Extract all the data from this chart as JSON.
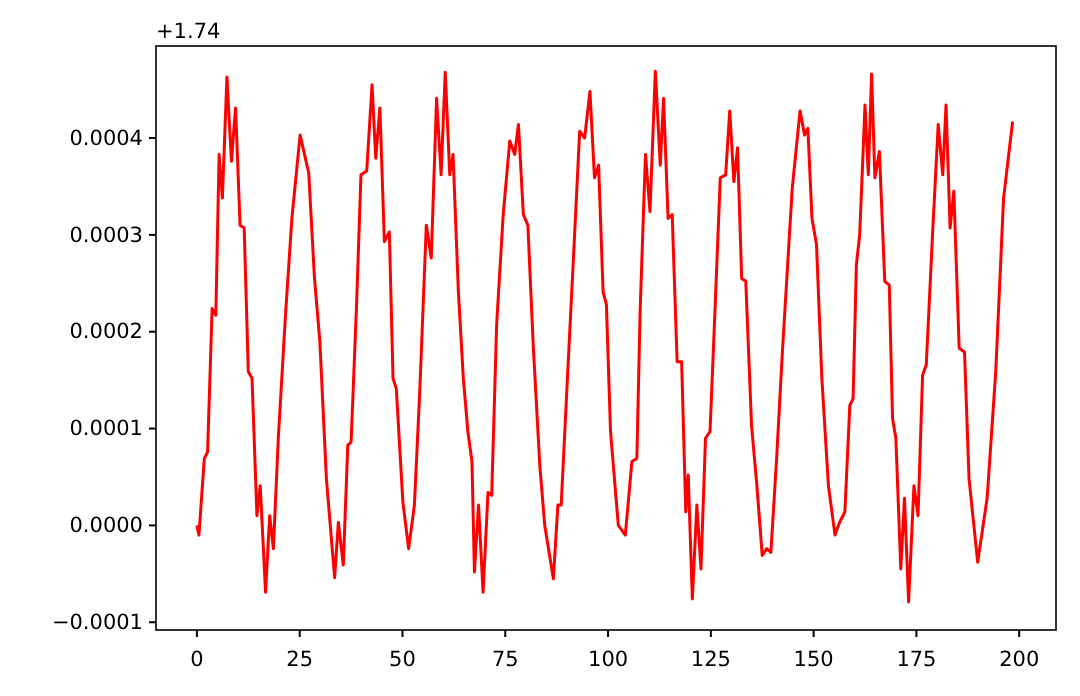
{
  "chart_data": {
    "type": "line",
    "annotations": [
      "+1.74"
    ],
    "xlim": [
      -9.95,
      208.95
    ],
    "xticks": [
      0,
      25,
      50,
      75,
      100,
      125,
      150,
      175,
      200
    ],
    "ylim": [
      -0.000108,
      0.000495
    ],
    "yticks": [
      {
        "value": -0.0001,
        "label": "−0.0001"
      },
      {
        "value": 0,
        "label": "0.0000"
      },
      {
        "value": 0.0001,
        "label": "0.0001"
      },
      {
        "value": 0.0002,
        "label": "0.0002"
      },
      {
        "value": 0.0003,
        "label": "0.0003"
      },
      {
        "value": 0.0004,
        "label": "0.0004"
      }
    ],
    "grid": false,
    "marker": "none",
    "line_style": "solid",
    "series": [
      {
        "color": "#ff0000",
        "x": [
          0,
          0.5,
          1.8,
          2.6,
          3.7,
          4.6,
          5.4,
          6.2,
          7.3,
          8.4,
          9.4,
          10.5,
          11.5,
          12.5,
          13.4,
          14.6,
          15.4,
          16.7,
          17.7,
          18.6,
          19.8,
          21.5,
          23.1,
          25.1,
          27.2,
          28.6,
          29.9,
          31.5,
          33.5,
          34.4,
          35.6,
          36.7,
          37.5,
          38.8,
          39.9,
          41.3,
          42.6,
          43.5,
          44.5,
          45.6,
          46.8,
          47.7,
          48.5,
          50.1,
          51.5,
          52.9,
          54.2,
          55.8,
          57,
          58.3,
          59.4,
          60.4,
          61.5,
          62.3,
          63.6,
          64.8,
          65.9,
          66.9,
          67.5,
          68.5,
          69.6,
          70.8,
          71.7,
          72.9,
          74.5,
          76.1,
          77.3,
          78.2,
          79.4,
          80.5,
          81.8,
          83.4,
          84.6,
          86.7,
          87.8,
          88.6,
          90.2,
          91.5,
          93.1,
          94.3,
          95.6,
          96.7,
          97.7,
          98.8,
          99.6,
          100.6,
          102.5,
          104.2,
          105.8,
          107,
          107.8,
          109.1,
          110.2,
          111.5,
          112.7,
          113.5,
          114.6,
          115.6,
          116.8,
          117.9,
          118.9,
          119.5,
          120.5,
          121.6,
          122.6,
          123.7,
          124.8,
          126,
          127.3,
          128.6,
          129.6,
          130.6,
          131.5,
          132.5,
          133.5,
          134.9,
          136.2,
          137.5,
          138.6,
          139.6,
          141,
          142.4,
          144.8,
          146.7,
          147.8,
          148.6,
          149.6,
          150.7,
          152,
          153.6,
          155.2,
          156.3,
          157.6,
          158.8,
          159.6,
          160.4,
          161.2,
          162.5,
          163.3,
          164.1,
          164.9,
          166,
          167.3,
          168.4,
          169.2,
          170,
          171.2,
          172.1,
          173.1,
          174.4,
          175.4,
          176.5,
          177.4,
          179,
          180.3,
          181.4,
          182.2,
          183.2,
          184.1,
          185.4,
          186.7,
          187.8,
          189.9,
          192.2,
          194.3,
          196.2,
          198.4
        ],
        "values": [
          0,
          -1e-05,
          6.9e-05,
          7.6e-05,
          0.000224,
          0.000217,
          0.000383,
          0.000338,
          0.000463,
          0.000376,
          0.000431,
          0.00031,
          0.000307,
          0.000159,
          0.000152,
          1e-05,
          4.1e-05,
          -6.9e-05,
          1e-05,
          -2.4e-05,
          9e-05,
          0.000214,
          0.000317,
          0.000403,
          0.000364,
          0.000255,
          0.00019,
          4.8e-05,
          -5.4e-05,
          3e-06,
          -4.1e-05,
          8.3e-05,
          8.6e-05,
          0.000224,
          0.000362,
          0.000366,
          0.000455,
          0.000379,
          0.000431,
          0.000293,
          0.000303,
          0.000152,
          0.000141,
          2.4e-05,
          -2.4e-05,
          2.1e-05,
          0.000138,
          0.00031,
          0.000276,
          0.000441,
          0.000362,
          0.000468,
          0.000362,
          0.000383,
          0.000241,
          0.000152,
          9.7e-05,
          6.6e-05,
          -4.8e-05,
          2.1e-05,
          -6.9e-05,
          3.4e-05,
          3.1e-05,
          0.000207,
          0.000321,
          0.000397,
          0.000383,
          0.000414,
          0.000321,
          0.00031,
          0.000186,
          6.2e-05,
          0,
          -5.5e-05,
          2.1e-05,
          2.1e-05,
          0.000159,
          0.000269,
          0.000407,
          0.0004,
          0.000448,
          0.000359,
          0.000372,
          0.000241,
          0.000228,
          9.7e-05,
          0,
          -1e-05,
          6.6e-05,
          6.9e-05,
          0.000221,
          0.000383,
          0.000324,
          0.000469,
          0.000372,
          0.000441,
          0.000317,
          0.000321,
          0.000169,
          0.000169,
          1.4e-05,
          5.2e-05,
          -7.6e-05,
          2.1e-05,
          -4.5e-05,
          9e-05,
          9.7e-05,
          0.000221,
          0.000359,
          0.000362,
          0.000428,
          0.000355,
          0.00039,
          0.000255,
          0.000252,
          0.000103,
          4.1e-05,
          -3.1e-05,
          -2.4e-05,
          -2.8e-05,
          6.9e-05,
          0.000179,
          0.000348,
          0.000428,
          0.000403,
          0.00041,
          0.000317,
          0.00029,
          0.000152,
          4.1e-05,
          -1e-05,
          3e-06,
          1.4e-05,
          0.000124,
          0.000131,
          0.000269,
          0.0003,
          0.000434,
          0.000362,
          0.000466,
          0.000359,
          0.000386,
          0.000252,
          0.000248,
          0.00011,
          9e-05,
          -4.5e-05,
          2.8e-05,
          -7.9e-05,
          4.1e-05,
          1e-05,
          0.000155,
          0.000166,
          0.000307,
          0.000414,
          0.000362,
          0.000434,
          0.000307,
          0.000345,
          0.000183,
          0.000179,
          4.8e-05,
          -3.8e-05,
          2.8e-05,
          0.000159,
          0.000338,
          0.000417
        ]
      }
    ]
  }
}
